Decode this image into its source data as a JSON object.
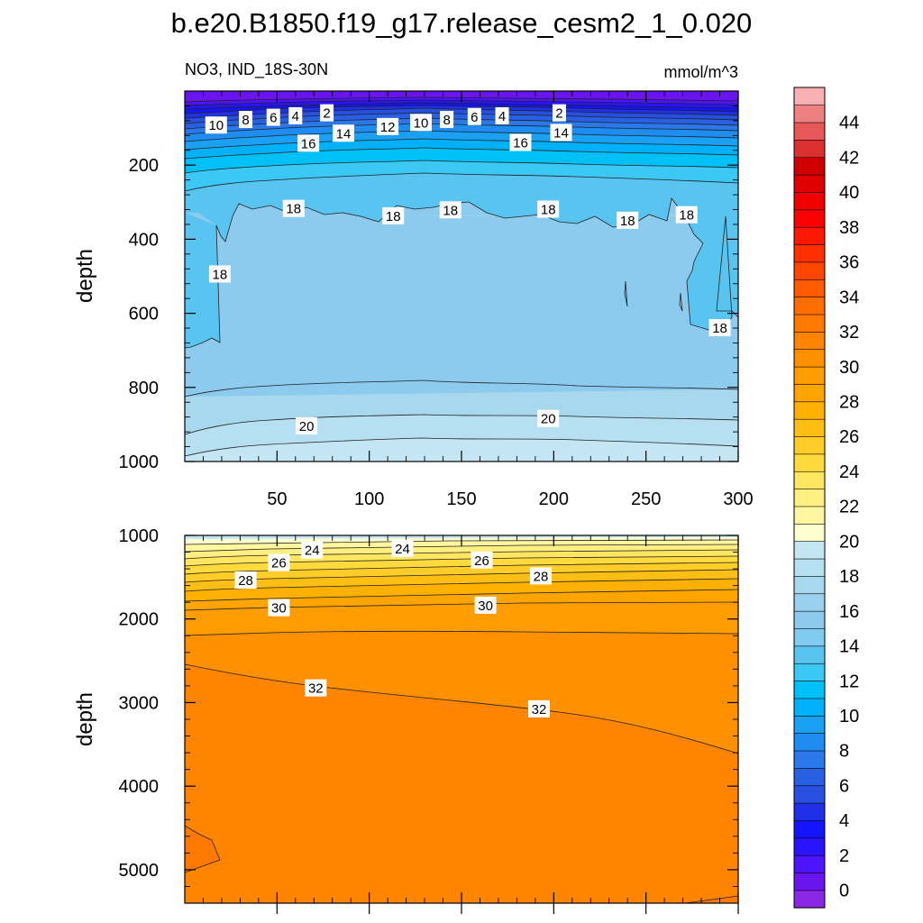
{
  "chart_data": [
    {
      "type": "heatmap",
      "title": "b.e20.B1850.f19_g17.release_cesm2_1_0.020",
      "subtitle_left": "NO3, IND_18S-30N",
      "subtitle_right": "mmol/m^3",
      "ylabel": "depth",
      "xlabel": "",
      "xlim": [
        0,
        300
      ],
      "ylim": [
        1000,
        0
      ],
      "x_ticks": [
        50,
        100,
        150,
        200,
        250,
        300
      ],
      "y_ticks": [
        200,
        400,
        600,
        800,
        1000
      ],
      "contour_labels": [
        {
          "v": "2",
          "x": 77,
          "y": 60
        },
        {
          "v": "2",
          "x": 203,
          "y": 60
        },
        {
          "v": "4",
          "x": 60,
          "y": 68
        },
        {
          "v": "4",
          "x": 172,
          "y": 68
        },
        {
          "v": "6",
          "x": 48,
          "y": 72
        },
        {
          "v": "6",
          "x": 157,
          "y": 70
        },
        {
          "v": "8",
          "x": 33,
          "y": 78
        },
        {
          "v": "8",
          "x": 142,
          "y": 78
        },
        {
          "v": "10",
          "x": 17,
          "y": 93
        },
        {
          "v": "10",
          "x": 128,
          "y": 86
        },
        {
          "v": "12",
          "x": 110,
          "y": 97
        },
        {
          "v": "14",
          "x": 86,
          "y": 115
        },
        {
          "v": "14",
          "x": 204,
          "y": 113
        },
        {
          "v": "16",
          "x": 67,
          "y": 142
        },
        {
          "v": "16",
          "x": 182,
          "y": 140
        },
        {
          "v": "18",
          "x": 59,
          "y": 318
        },
        {
          "v": "18",
          "x": 113,
          "y": 338
        },
        {
          "v": "18",
          "x": 144,
          "y": 322
        },
        {
          "v": "18",
          "x": 197,
          "y": 320
        },
        {
          "v": "18",
          "x": 240,
          "y": 350
        },
        {
          "v": "18",
          "x": 272,
          "y": 335
        },
        {
          "v": "18",
          "x": 19,
          "y": 495
        },
        {
          "v": "18",
          "x": 290,
          "y": 640
        },
        {
          "v": "20",
          "x": 66,
          "y": 905
        },
        {
          "v": "20",
          "x": 197,
          "y": 885
        }
      ]
    },
    {
      "type": "heatmap",
      "ylabel": "depth",
      "xlabel": "",
      "xlim": [
        0,
        300
      ],
      "ylim": [
        5400,
        1000
      ],
      "y_ticks": [
        1000,
        2000,
        3000,
        4000,
        5000
      ],
      "contour_labels": [
        {
          "v": "24",
          "x": 69,
          "y": 1180
        },
        {
          "v": "24",
          "x": 118,
          "y": 1160
        },
        {
          "v": "26",
          "x": 51,
          "y": 1330
        },
        {
          "v": "26",
          "x": 161,
          "y": 1300
        },
        {
          "v": "28",
          "x": 33,
          "y": 1540
        },
        {
          "v": "28",
          "x": 193,
          "y": 1490
        },
        {
          "v": "30",
          "x": 51,
          "y": 1870
        },
        {
          "v": "30",
          "x": 163,
          "y": 1840
        },
        {
          "v": "32",
          "x": 71,
          "y": 2830
        },
        {
          "v": "32",
          "x": 192,
          "y": 3080
        }
      ]
    }
  ],
  "colorbar": {
    "labels": [
      "0",
      "2",
      "4",
      "6",
      "8",
      "10",
      "12",
      "14",
      "16",
      "18",
      "20",
      "22",
      "24",
      "26",
      "28",
      "30",
      "32",
      "34",
      "36",
      "38",
      "40",
      "42",
      "44"
    ],
    "colors": [
      "#8a28e6",
      "#6a14f0",
      "#4e14ff",
      "#2a14ff",
      "#1414ff",
      "#1f30e6",
      "#2850e0",
      "#2860e4",
      "#2a78ea",
      "#1e8cf0",
      "#1aa0f4",
      "#00b0f8",
      "#00c0f8",
      "#3cc8f4",
      "#5ac4f0",
      "#80ccf0",
      "#8ccaee",
      "#98d0ee",
      "#a8d8ee",
      "#b6e0f2",
      "#c4e6f4",
      "#ffffd0",
      "#fff6a0",
      "#ffee80",
      "#ffe660",
      "#ffda3c",
      "#ffcc28",
      "#ffbe14",
      "#ffb000",
      "#ffa400",
      "#ff9c00",
      "#ff9000",
      "#ff8400",
      "#ff7800",
      "#ff6c00",
      "#ff5a00",
      "#ff4600",
      "#ff3000",
      "#ff1800",
      "#ff0000",
      "#f00000",
      "#e00000",
      "#d00000",
      "#dc3030",
      "#e85858",
      "#f08080",
      "#f8b0b0"
    ]
  }
}
